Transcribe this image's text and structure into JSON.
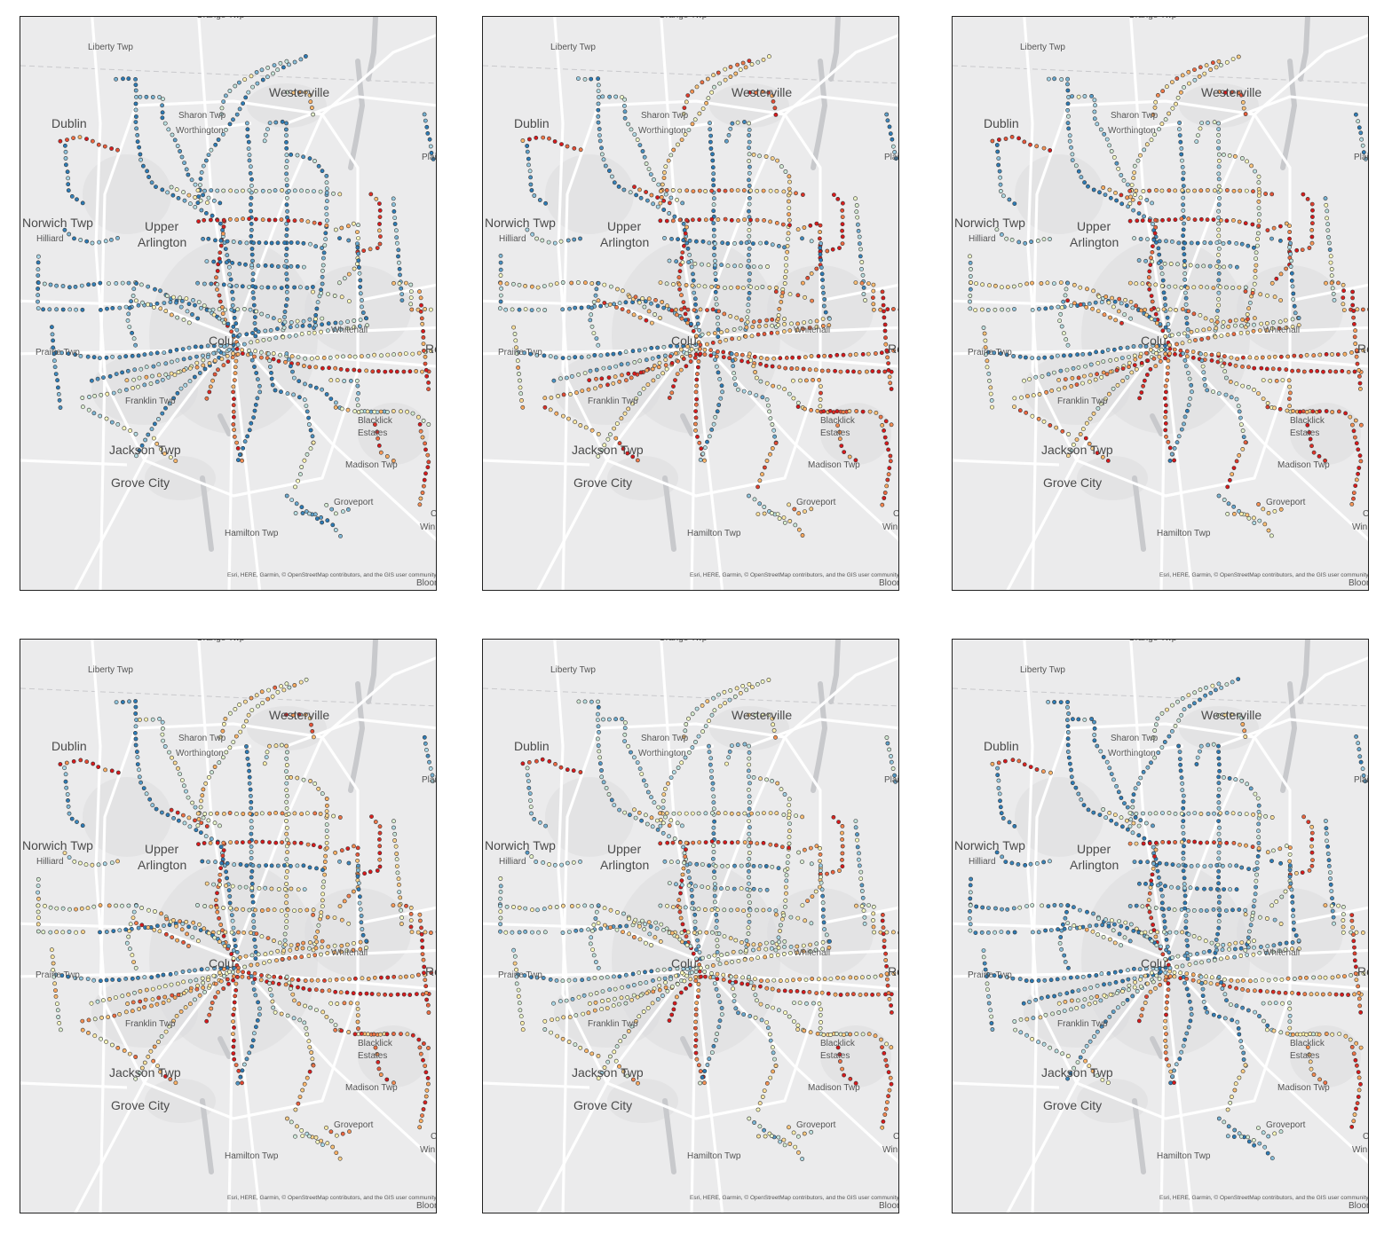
{
  "colors": {
    "background": "#ebebec",
    "land_light": "#efeff0",
    "urban": "#dcdcde",
    "water": "#c8c9cc",
    "road": "#ffffff",
    "border": "#222222",
    "ramp": [
      "#2c7bb6",
      "#abd9e9",
      "#ffffbf",
      "#fdae61",
      "#d7191c"
    ]
  },
  "place_labels": [
    {
      "key": "orange",
      "text": "Orange Twp"
    },
    {
      "key": "liberty",
      "text": "Liberty Twp"
    },
    {
      "key": "westerville",
      "text": "Westerville"
    },
    {
      "key": "dublin",
      "text": "Dublin"
    },
    {
      "key": "sharon",
      "text": "Sharon Twp"
    },
    {
      "key": "worthington",
      "text": "Worthington"
    },
    {
      "key": "plain",
      "text": "Plai"
    },
    {
      "key": "norwich",
      "text": "Norwich Twp"
    },
    {
      "key": "hilliard",
      "text": "Hilliard"
    },
    {
      "key": "upper",
      "text": "Upper"
    },
    {
      "key": "arlington",
      "text": "Arlington"
    },
    {
      "key": "columbus",
      "text": "Colu"
    },
    {
      "key": "whitehall",
      "text": "Whitehall"
    },
    {
      "key": "reyn",
      "text": "Reyn"
    },
    {
      "key": "prairie",
      "text": "Prairie Twp"
    },
    {
      "key": "franklin",
      "text": "Franklin Twp"
    },
    {
      "key": "blacklick",
      "text": "Blacklick"
    },
    {
      "key": "estates",
      "text": "Estates"
    },
    {
      "key": "jackson",
      "text": "Jackson Twp"
    },
    {
      "key": "madison",
      "text": "Madison Twp"
    },
    {
      "key": "grovecity",
      "text": "Grove City"
    },
    {
      "key": "groveport",
      "text": "Groveport"
    },
    {
      "key": "canal",
      "text": "C"
    },
    {
      "key": "win",
      "text": "Win"
    },
    {
      "key": "hamilton",
      "text": "Hamilton Twp"
    },
    {
      "key": "bloom",
      "text": "Bloom"
    }
  ],
  "attribution": "Esri, HERE, Garmin, © OpenStreetMap contributors, and the GIS user community",
  "maps": [
    {
      "id": "map-1",
      "palette": [
        0.05,
        0.1,
        0.12,
        0.35,
        0.55,
        0.9
      ]
    },
    {
      "id": "map-2",
      "palette": [
        0.1,
        0.25,
        0.55,
        0.75,
        0.9,
        0.95
      ]
    },
    {
      "id": "map-3",
      "palette": [
        0.1,
        0.3,
        0.5,
        0.7,
        0.85,
        0.95
      ]
    },
    {
      "id": "map-4",
      "palette": [
        0.05,
        0.45,
        0.55,
        0.65,
        0.8,
        0.95
      ]
    },
    {
      "id": "map-5",
      "palette": [
        0.2,
        0.3,
        0.45,
        0.5,
        0.6,
        0.95
      ]
    },
    {
      "id": "map-6",
      "palette": [
        0.02,
        0.1,
        0.2,
        0.4,
        0.55,
        0.85
      ]
    }
  ]
}
